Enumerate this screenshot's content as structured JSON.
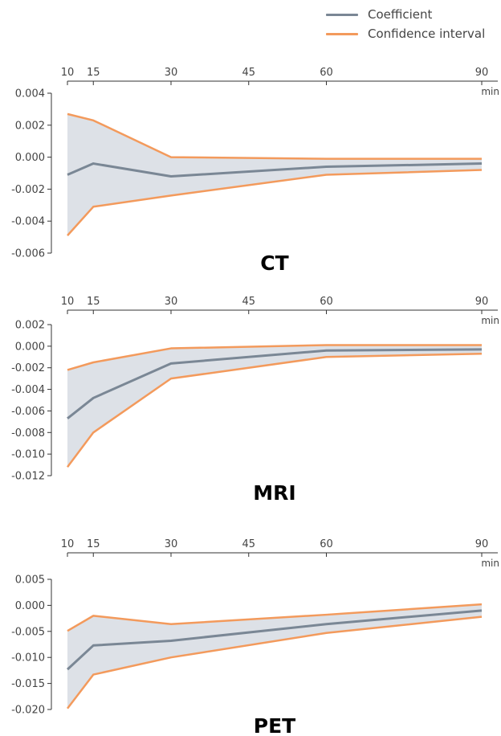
{
  "legend": {
    "coefficient_label": "Coefficient",
    "ci_label": "Confidence interval"
  },
  "colors": {
    "coefficient": "#7a8795",
    "ci": "#f39a5c",
    "band": "#dde1e7",
    "axis": "#333333"
  },
  "chart_data": [
    {
      "type": "line",
      "title": "CT",
      "x_unit": "min",
      "x": [
        10,
        15,
        30,
        60,
        90
      ],
      "x_ticks": [
        10,
        15,
        30,
        45,
        60,
        90
      ],
      "ylim": [
        -0.006,
        0.004
      ],
      "y_ticks": [
        "0.004",
        "0.002",
        "0.000",
        "-0.002",
        "-0.004",
        "-0.006"
      ],
      "y_tick_values": [
        0.004,
        0.002,
        0.0,
        -0.002,
        -0.004,
        -0.006
      ],
      "series": [
        {
          "name": "Coefficient",
          "values": [
            -0.0011,
            -0.0004,
            -0.0012,
            -0.0006,
            -0.0004
          ]
        },
        {
          "name": "Confidence interval",
          "role": "upper",
          "values": [
            0.0027,
            0.0023,
            0.0,
            -0.0001,
            -0.0001
          ]
        },
        {
          "name": "Confidence interval",
          "role": "lower",
          "values": [
            -0.0049,
            -0.0031,
            -0.0024,
            -0.0011,
            -0.0008
          ]
        }
      ]
    },
    {
      "type": "line",
      "title": "MRI",
      "x_unit": "min",
      "x": [
        10,
        15,
        30,
        60,
        90
      ],
      "x_ticks": [
        10,
        15,
        30,
        45,
        60,
        90
      ],
      "ylim": [
        -0.012,
        0.002
      ],
      "y_ticks": [
        "0.002",
        "0.000",
        "-0.002",
        "-0.004",
        "-0.006",
        "-0.008",
        "-0.010",
        "-0.012"
      ],
      "y_tick_values": [
        0.002,
        0.0,
        -0.002,
        -0.004,
        -0.006,
        -0.008,
        -0.01,
        -0.012
      ],
      "series": [
        {
          "name": "Coefficient",
          "values": [
            -0.0067,
            -0.0048,
            -0.0016,
            -0.0004,
            -0.0003
          ]
        },
        {
          "name": "Confidence interval",
          "role": "upper",
          "values": [
            -0.0022,
            -0.0015,
            -0.0002,
            0.0001,
            0.0001
          ]
        },
        {
          "name": "Confidence interval",
          "role": "lower",
          "values": [
            -0.0112,
            -0.008,
            -0.003,
            -0.001,
            -0.0007
          ]
        }
      ]
    },
    {
      "type": "line",
      "title": "PET",
      "x_unit": "min",
      "x": [
        10,
        15,
        30,
        60,
        90
      ],
      "x_ticks": [
        10,
        15,
        30,
        45,
        60,
        90
      ],
      "ylim": [
        -0.02,
        0.005
      ],
      "y_ticks": [
        "0.005",
        "0.000",
        "-0.005",
        "-0.010",
        "-0.015",
        "-0.020"
      ],
      "y_tick_values": [
        0.005,
        0.0,
        -0.005,
        -0.01,
        -0.015,
        -0.02
      ],
      "series": [
        {
          "name": "Coefficient",
          "values": [
            -0.0123,
            -0.0077,
            -0.0068,
            -0.0036,
            -0.001
          ]
        },
        {
          "name": "Confidence interval",
          "role": "upper",
          "values": [
            -0.0049,
            -0.002,
            -0.0036,
            -0.0018,
            0.0002
          ]
        },
        {
          "name": "Confidence interval",
          "role": "lower",
          "values": [
            -0.0198,
            -0.0133,
            -0.01,
            -0.0053,
            -0.0022
          ]
        }
      ]
    }
  ]
}
